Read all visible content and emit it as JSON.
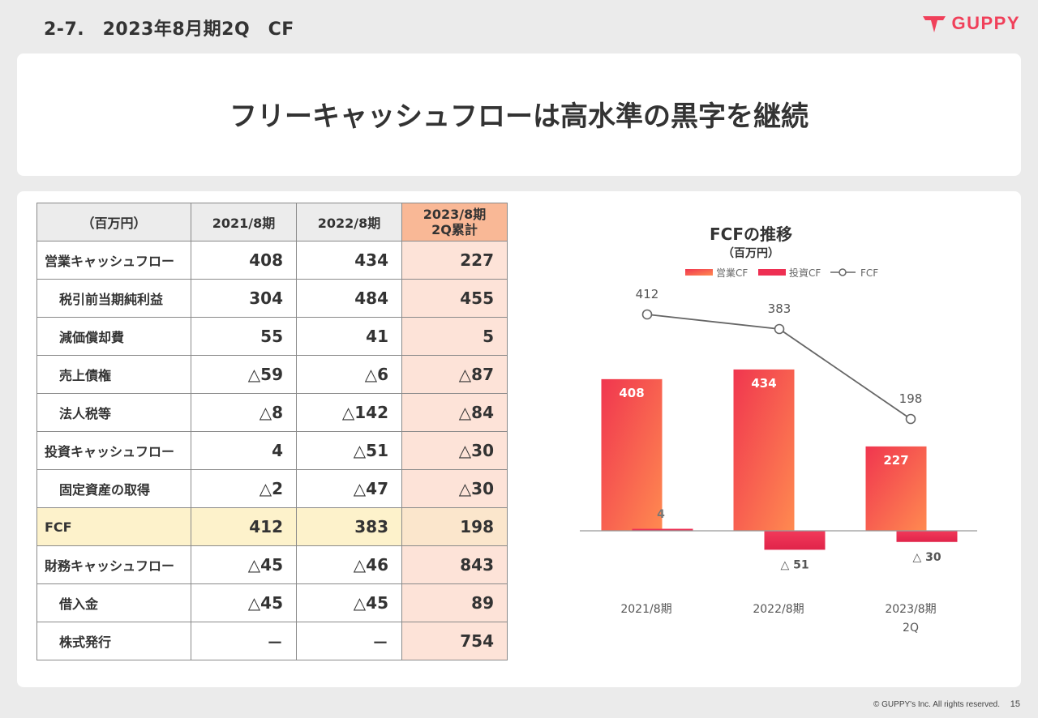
{
  "header": {
    "slide_title": "2-7.　2023年8月期2Q　CF",
    "logo_text": "GUPPY",
    "brand_color": "#f0405a"
  },
  "headline": "フリーキャッシュフローは高水準の黒字を継続",
  "table": {
    "columns": [
      "（百万円）",
      "2021/8期",
      "2022/8期",
      "2023/8期",
      "2Q累計"
    ],
    "rows": [
      {
        "label": "営業キャッシュフロー",
        "values": [
          "408",
          "434",
          "227"
        ]
      },
      {
        "label": "税引前当期純利益",
        "values": [
          "304",
          "484",
          "455"
        ]
      },
      {
        "label": "減価償却費",
        "values": [
          "55",
          "41",
          "5"
        ]
      },
      {
        "label": "売上債権",
        "values": [
          "△59",
          "△6",
          "△87"
        ]
      },
      {
        "label": "法人税等",
        "values": [
          "△8",
          "△142",
          "△84"
        ]
      },
      {
        "label": "投資キャッシュフロー",
        "values": [
          "4",
          "△51",
          "△30"
        ]
      },
      {
        "label": "固定資産の取得",
        "values": [
          "△2",
          "△47",
          "△30"
        ]
      },
      {
        "label": "FCF",
        "values": [
          "412",
          "383",
          "198"
        ]
      },
      {
        "label": "財務キャッシュフロー",
        "values": [
          "△45",
          "△46",
          "843"
        ]
      },
      {
        "label": "借入金",
        "values": [
          "△45",
          "△45",
          "89"
        ]
      },
      {
        "label": "株式発行",
        "values": [
          "－",
          "－",
          "754"
        ]
      }
    ]
  },
  "chart_data": {
    "type": "bar",
    "title": "FCFの推移",
    "subtitle": "（百万円）",
    "categories": [
      "2021/8期",
      "2022/8期",
      "2023/8期 2Q"
    ],
    "category_lines": [
      [
        "2021/8期"
      ],
      [
        "2022/8期"
      ],
      [
        "2023/8期",
        "2Q"
      ]
    ],
    "series": [
      {
        "name": "営業CF",
        "type": "bar",
        "values": [
          408,
          434,
          227
        ],
        "labels": [
          "408",
          "434",
          "227"
        ],
        "color": "#f5605a"
      },
      {
        "name": "投資CF",
        "type": "bar",
        "values": [
          4,
          -51,
          -30
        ],
        "labels": [
          "4",
          "△ 51",
          "△ 30"
        ],
        "color": "#ee2f52"
      },
      {
        "name": "FCF",
        "type": "line",
        "values": [
          412,
          383,
          198
        ],
        "labels": [
          "412",
          "383",
          "198"
        ],
        "color": "#666666"
      }
    ],
    "legend": "top",
    "grid": false
  },
  "footer": {
    "copyright": "© GUPPY's Inc. All rights reserved.",
    "page": "15"
  }
}
